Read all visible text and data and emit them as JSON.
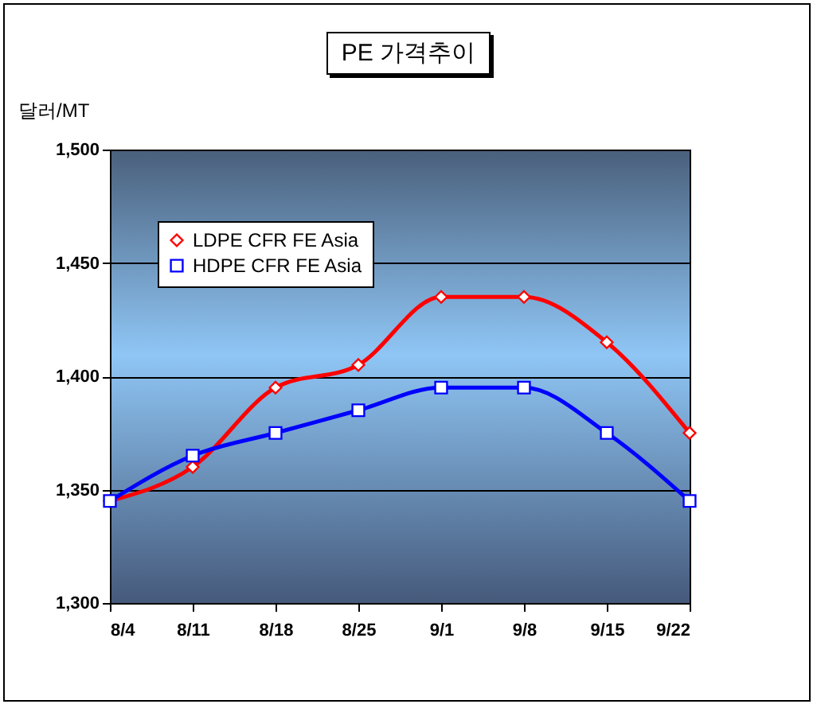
{
  "chart_data": {
    "type": "line",
    "title": "PE 가격추이",
    "ylabel": "달러/MT",
    "categories": [
      "8/4",
      "8/11",
      "8/18",
      "8/25",
      "9/1",
      "9/8",
      "9/15",
      "9/22"
    ],
    "series": [
      {
        "name": "LDPE CFR FE Asia",
        "color": "#ff0000",
        "marker": "diamond",
        "values": [
          1345,
          1360,
          1395,
          1405,
          1435,
          1435,
          1415,
          1375
        ]
      },
      {
        "name": "HDPE CFR FE Asia",
        "color": "#0000ff",
        "marker": "square",
        "values": [
          1345,
          1365,
          1375,
          1385,
          1395,
          1395,
          1375,
          1345
        ]
      }
    ],
    "ylim": [
      1300,
      1500
    ],
    "yticks": [
      {
        "value": 1300,
        "label": "1,300"
      },
      {
        "value": 1350,
        "label": "1,350"
      },
      {
        "value": 1400,
        "label": "1,400"
      },
      {
        "value": 1450,
        "label": "1,450"
      },
      {
        "value": 1500,
        "label": "1,500"
      }
    ],
    "grid": "y",
    "legend": "top left",
    "line_style": "solid"
  }
}
